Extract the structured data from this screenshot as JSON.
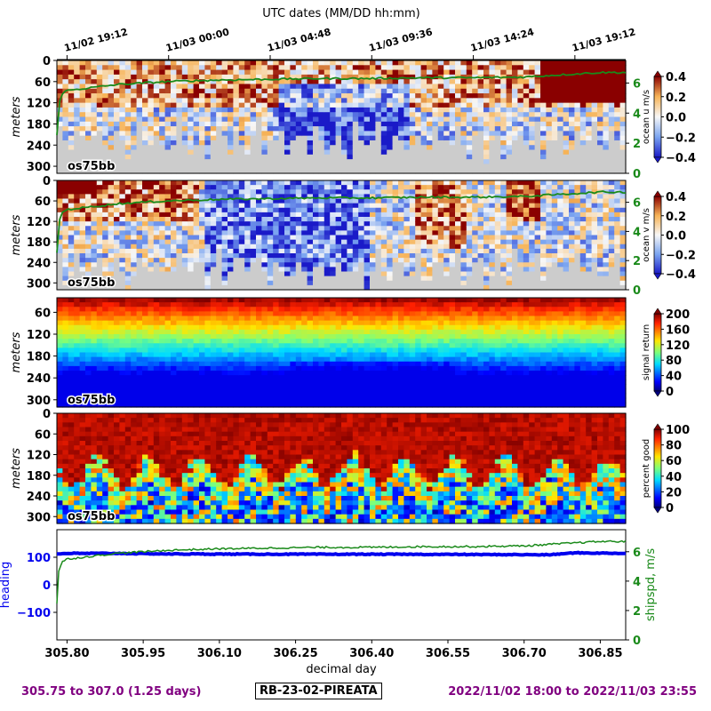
{
  "top_axis": {
    "label": "UTC dates (MM/DD hh:mm)",
    "ticks": [
      {
        "day": 305.8,
        "label": "11/02 19:12"
      },
      {
        "day": 306.0,
        "label": "11/03 00:00"
      },
      {
        "day": 306.2,
        "label": "11/03 04:48"
      },
      {
        "day": 306.4,
        "label": "11/03 09:36"
      },
      {
        "day": 306.6,
        "label": "11/03 14:24"
      },
      {
        "day": 306.8,
        "label": "11/03 19:12"
      }
    ]
  },
  "chart_data": [
    {
      "type": "heatmap",
      "id": "ocean-u",
      "ylabel": "meters",
      "tag": "os75bb",
      "xlim": [
        305.78,
        306.9
      ],
      "ylim": [
        320,
        0
      ],
      "yticks": [
        0,
        60,
        120,
        180,
        240,
        300
      ],
      "colorbar": {
        "label": "ocean u m/s",
        "ticks": [
          "0.4",
          "0.2",
          "0.0",
          "−0.2",
          "−0.4"
        ],
        "range": [
          -0.4,
          0.4
        ],
        "colormap": "blue-white-red"
      },
      "right_axis": {
        "ticks": [
          0,
          2,
          4,
          6
        ],
        "color": "#1a8a1a"
      },
      "overlay": "ship speed (green line, right axis)"
    },
    {
      "type": "heatmap",
      "id": "ocean-v",
      "ylabel": "meters",
      "tag": "os75bb",
      "xlim": [
        305.78,
        306.9
      ],
      "ylim": [
        320,
        0
      ],
      "yticks": [
        0,
        60,
        120,
        180,
        240,
        300
      ],
      "colorbar": {
        "label": "ocean v m/s",
        "ticks": [
          "0.4",
          "0.2",
          "0.0",
          "−0.2",
          "−0.4"
        ],
        "range": [
          -0.4,
          0.4
        ],
        "colormap": "blue-white-red"
      },
      "right_axis": {
        "ticks": [
          0,
          2,
          4,
          6
        ],
        "color": "#1a8a1a"
      },
      "overlay": "ship speed (green line, right axis)"
    },
    {
      "type": "heatmap",
      "id": "signal-return",
      "ylabel": "meters",
      "tag": "os75bb",
      "xlim": [
        305.78,
        306.9
      ],
      "ylim": [
        320,
        20
      ],
      "yticks": [
        60,
        120,
        180,
        240,
        300
      ],
      "colorbar": {
        "label": "signal return",
        "ticks": [
          "200",
          "160",
          "120",
          "80",
          "40",
          "0"
        ],
        "range": [
          0,
          200
        ],
        "colormap": "jet"
      }
    },
    {
      "type": "heatmap",
      "id": "percent-good",
      "ylabel": "meters",
      "tag": "os75bb",
      "xlim": [
        305.78,
        306.9
      ],
      "ylim": [
        320,
        0
      ],
      "yticks": [
        0,
        60,
        120,
        180,
        240,
        300
      ],
      "colorbar": {
        "label": "percent good",
        "ticks": [
          "100",
          "80",
          "60",
          "40",
          "20",
          "0"
        ],
        "range": [
          0,
          100
        ],
        "colormap": "jet"
      }
    },
    {
      "type": "line",
      "id": "heading-speed",
      "xlabel": "decimal day",
      "xlim": [
        305.78,
        306.9
      ],
      "xticks": [
        "305.80",
        "305.95",
        "306.10",
        "306.25",
        "306.40",
        "306.55",
        "306.70",
        "306.85"
      ],
      "xtick_values": [
        305.8,
        305.95,
        306.1,
        306.25,
        306.4,
        306.55,
        306.7,
        306.85
      ],
      "left_axis": {
        "label": "heading",
        "ticks": [
          "100",
          "0",
          "−100"
        ],
        "tick_values": [
          100,
          0,
          -100
        ],
        "range": [
          -200,
          200
        ],
        "color": "#0000ee"
      },
      "right_axis": {
        "label": "shipspd, m/s",
        "ticks": [
          "6",
          "4",
          "2",
          "0"
        ],
        "tick_values": [
          6,
          4,
          2,
          0
        ],
        "range": [
          0,
          7.5
        ],
        "color": "#1a8a1a"
      },
      "series": [
        {
          "name": "heading",
          "axis": "left",
          "color": "#0000ee",
          "x": [
            305.78,
            305.79,
            305.8,
            305.9,
            306.0,
            306.2,
            306.4,
            306.6,
            306.75,
            306.8,
            306.85,
            306.9
          ],
          "y": [
            112,
            113,
            114,
            114,
            112,
            111,
            111,
            110,
            109,
            116,
            115,
            114
          ]
        },
        {
          "name": "shipspd",
          "axis": "right",
          "color": "#1a8a1a",
          "x": [
            305.78,
            305.782,
            305.79,
            305.8,
            305.85,
            305.9,
            305.95,
            306.0,
            306.1,
            306.2,
            306.3,
            306.4,
            306.5,
            306.6,
            306.7,
            306.75,
            306.8,
            306.85,
            306.9
          ],
          "y": [
            2.5,
            4.5,
            5.3,
            5.5,
            5.7,
            5.9,
            6.0,
            6.1,
            6.2,
            6.25,
            6.3,
            6.3,
            6.35,
            6.35,
            6.4,
            6.5,
            6.6,
            6.7,
            6.7
          ]
        }
      ]
    }
  ],
  "footer": {
    "left": "305.75 to 307.0 (1.25 days)",
    "center": "RB-23-02-PIREATA",
    "right": "2022/11/02 18:00 to 2022/11/03 23:55"
  }
}
